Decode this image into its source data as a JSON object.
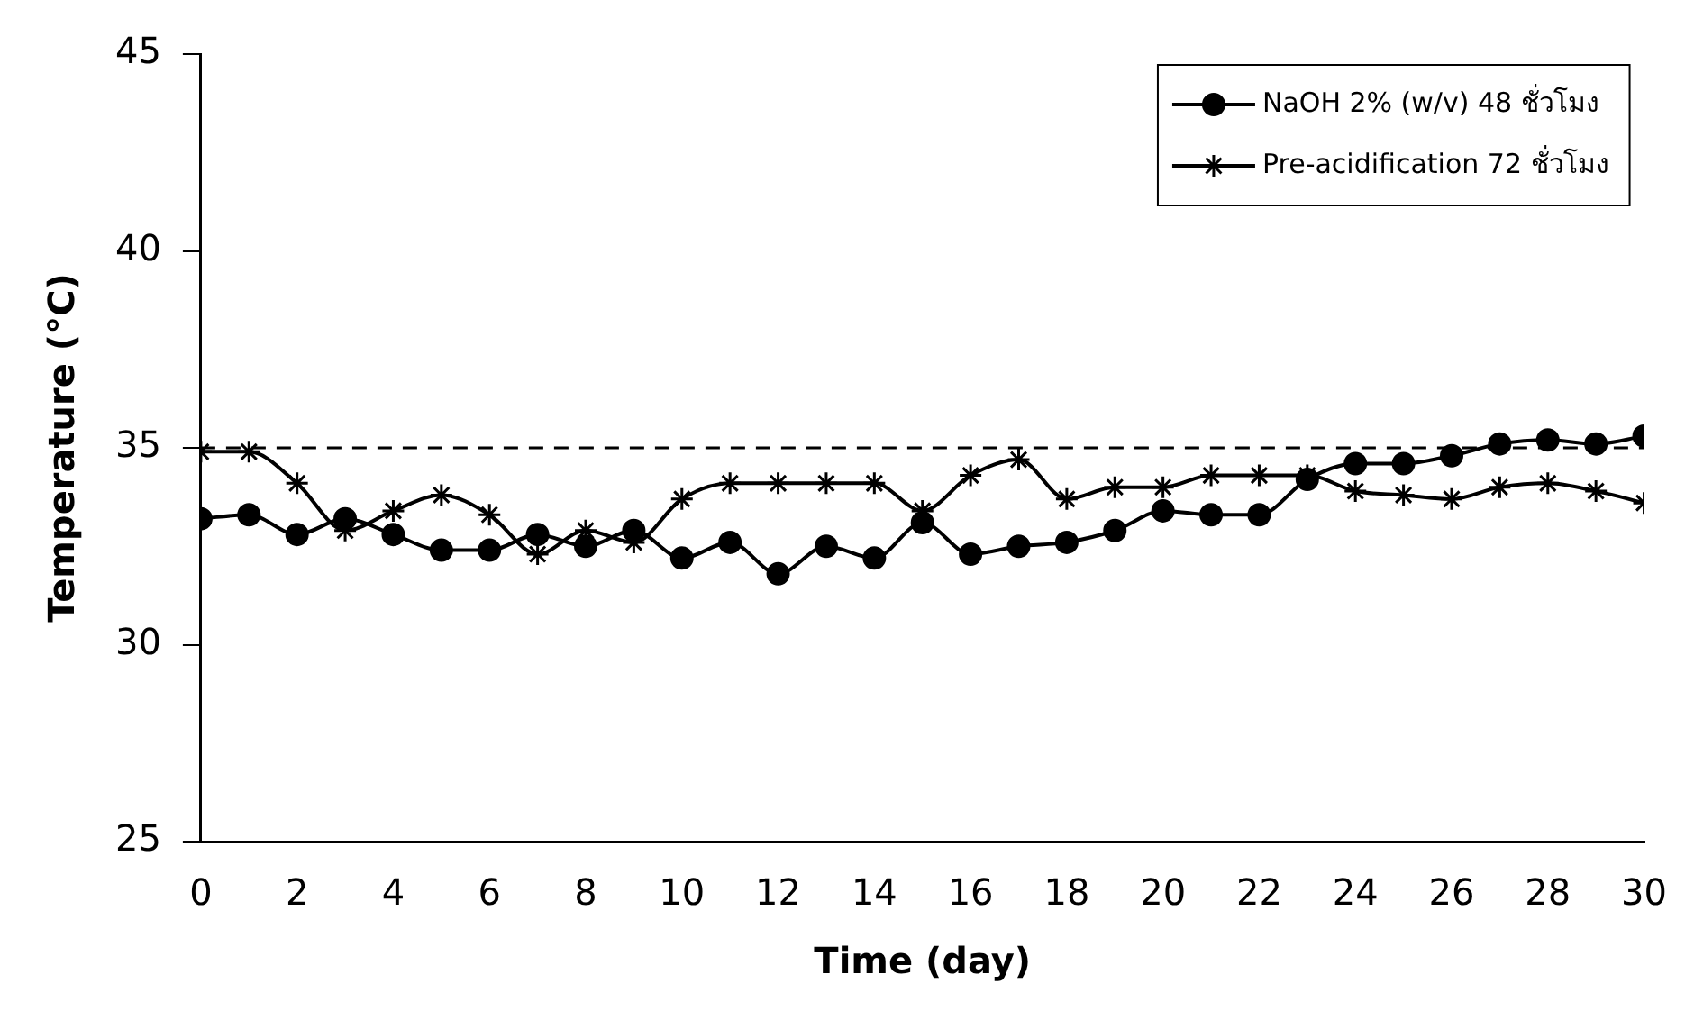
{
  "chart_data": {
    "type": "line",
    "xlabel": "Time (day)",
    "ylabel": "Temperature (°C)",
    "x": [
      0,
      1,
      2,
      3,
      4,
      5,
      6,
      7,
      8,
      9,
      10,
      11,
      12,
      13,
      14,
      15,
      16,
      17,
      18,
      19,
      20,
      21,
      22,
      23,
      24,
      25,
      26,
      27,
      28,
      29,
      30
    ],
    "series": [
      {
        "name": "NaOH 2% (w/v) 48 ชั่วโมง",
        "color": "#000000",
        "marker": "circle",
        "values": [
          33.2,
          33.3,
          32.8,
          33.2,
          32.8,
          32.4,
          32.4,
          32.8,
          32.5,
          32.9,
          32.2,
          32.6,
          31.8,
          32.5,
          32.2,
          33.1,
          32.3,
          32.5,
          32.6,
          32.9,
          33.4,
          33.3,
          33.3,
          34.2,
          34.6,
          34.6,
          34.8,
          35.1,
          35.2,
          35.1,
          35.3
        ]
      },
      {
        "name": "Pre-acidification 72 ชั่วโมง",
        "color": "#000000",
        "marker": "cross",
        "values": [
          34.9,
          34.9,
          34.1,
          32.9,
          33.4,
          33.8,
          33.3,
          32.3,
          32.9,
          32.6,
          33.7,
          34.1,
          34.1,
          34.1,
          34.1,
          33.4,
          34.3,
          34.7,
          33.7,
          34.0,
          34.0,
          34.3,
          34.3,
          34.3,
          33.9,
          33.8,
          33.7,
          34.0,
          34.1,
          33.9,
          33.6
        ]
      }
    ],
    "xlim": [
      0,
      30
    ],
    "xticks": [
      0,
      2,
      4,
      6,
      8,
      10,
      12,
      14,
      16,
      18,
      20,
      22,
      24,
      26,
      28,
      30
    ],
    "ylim": [
      25,
      45
    ],
    "yticks": [
      25,
      30,
      35,
      40,
      45
    ],
    "ref_lines": [
      {
        "axis": "y",
        "value": 35,
        "line_style": "dashed",
        "color": "#000000"
      }
    ],
    "grid": false,
    "legend": "top right",
    "line_style": "solid"
  }
}
